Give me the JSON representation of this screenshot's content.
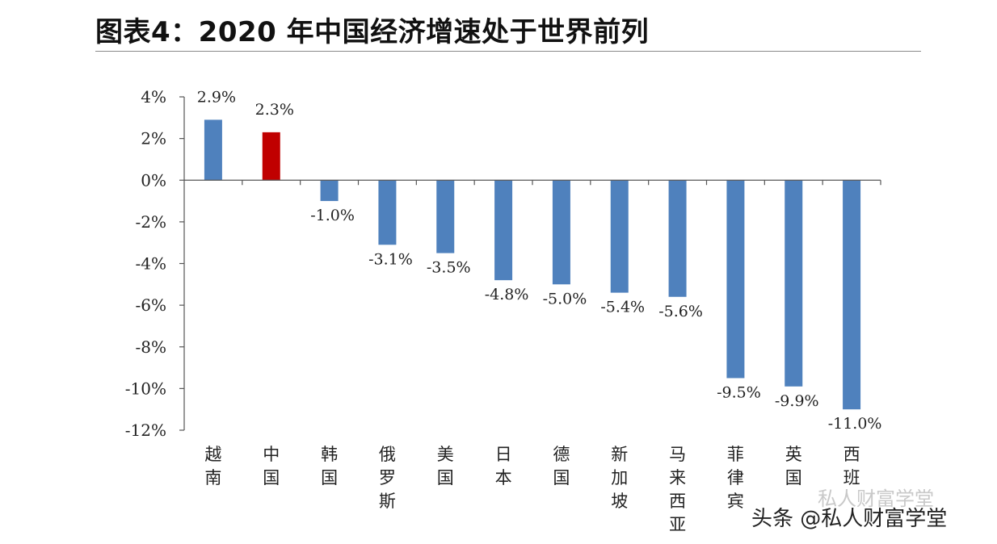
{
  "title": "图表4：2020 年中国经济增速处于世界前列",
  "watermark": "头条 @私人财富学堂",
  "watermark_faint": "私人财富学堂",
  "chart_data": {
    "type": "bar",
    "categories": [
      "越南",
      "中国",
      "韩国",
      "俄罗斯",
      "美国",
      "日本",
      "德国",
      "新加坡",
      "马来西亚",
      "菲律宾",
      "英国",
      "西班"
    ],
    "values": [
      2.9,
      2.3,
      -1.0,
      -3.1,
      -3.5,
      -4.8,
      -5.0,
      -5.4,
      -5.6,
      -9.5,
      -9.9,
      -11.0
    ],
    "value_labels": [
      "2.9%",
      "2.3%",
      "-1.0%",
      "-3.1%",
      "-3.5%",
      "-4.8%",
      "-5.0%",
      "-5.4%",
      "-5.6%",
      "-9.5%",
      "-9.9%",
      "-11.0%"
    ],
    "ylim": [
      -12,
      4
    ],
    "yticks": [
      4,
      2,
      0,
      -2,
      -4,
      -6,
      -8,
      -10,
      -12
    ],
    "ytick_labels": [
      "4%",
      "2%",
      "0%",
      "-2%",
      "-4%",
      "-6%",
      "-8%",
      "-10%",
      "-12%"
    ],
    "grid": false,
    "colors": {
      "default": "#4f81bd",
      "highlight": "#c00000"
    },
    "highlight_category": "中国"
  }
}
